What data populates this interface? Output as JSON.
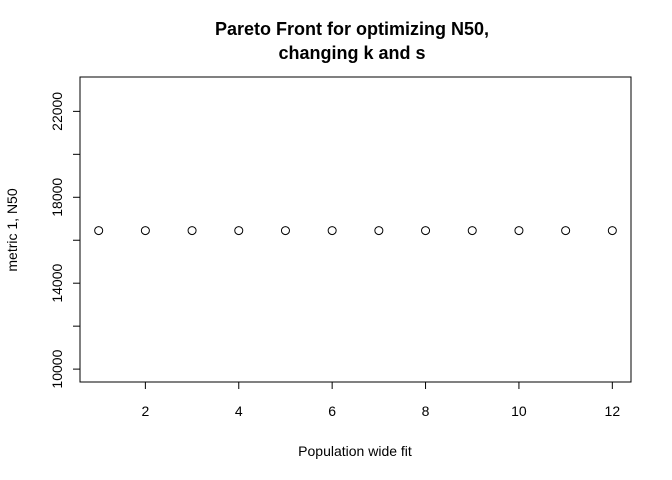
{
  "chart_data": {
    "type": "scatter",
    "title_lines": [
      "Pareto Front for optimizing N50,",
      "changing k and s"
    ],
    "xlabel": "Population wide fit",
    "ylabel": "metric 1, N50",
    "x": [
      1,
      2,
      3,
      4,
      5,
      6,
      7,
      8,
      9,
      10,
      11,
      12
    ],
    "y": [
      16450,
      16450,
      16450,
      16450,
      16450,
      16450,
      16450,
      16450,
      16450,
      16450,
      16450,
      16450
    ],
    "xlim": [
      0.6,
      12.4
    ],
    "ylim": [
      9400,
      23600
    ],
    "x_ticks": [
      2,
      4,
      6,
      8,
      10,
      12
    ],
    "x_tick_labels": [
      "2",
      "4",
      "6",
      "8",
      "10",
      "12"
    ],
    "y_ticks": [
      10000,
      14000,
      18000,
      22000
    ],
    "y_tick_labels": [
      "10000",
      "14000",
      "18000",
      "22000"
    ],
    "y_minor_ticks": [
      10000,
      12000,
      14000,
      16000,
      18000,
      20000,
      22000
    ],
    "marker": "open-circle",
    "grid": false,
    "legend": "none",
    "colors": {
      "point_stroke": "#000000",
      "axis": "#000000",
      "background": "#ffffff"
    }
  }
}
